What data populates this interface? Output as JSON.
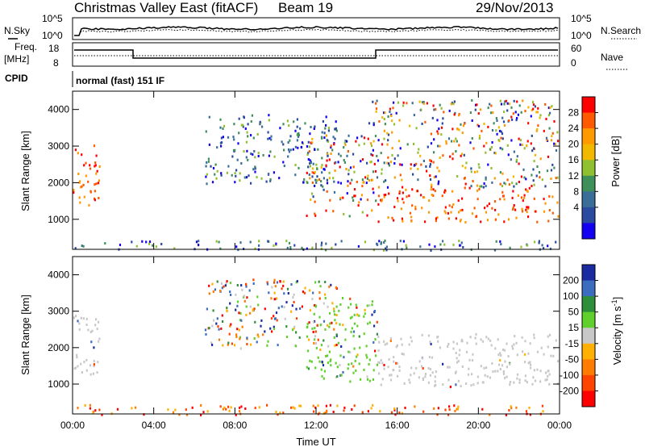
{
  "header": {
    "station": "Christmas Valley East (fitACF)",
    "beam": "Beam 19",
    "date": "29/Nov/2013"
  },
  "top_panels": {
    "noise_left_label": "N.Sky",
    "noise_right_label": "N.Search",
    "noise_left_ticks": [
      "10^5",
      "10^0"
    ],
    "noise_right_ticks": [
      "10^5",
      "10^0"
    ],
    "freq_left_label_1": "Freq.",
    "freq_left_label_2": "[MHz]",
    "freq_left_ticks": [
      "18",
      "8"
    ],
    "nave_label": "Nave",
    "nave_ticks": [
      "60",
      "0"
    ],
    "cpid_label": "CPID",
    "cpid_value": "normal (fast) 151 IF"
  },
  "chart_data": [
    {
      "type": "heatmap",
      "name": "power",
      "ylabel": "Slant Range [km]",
      "ylim": [
        180,
        4500
      ],
      "yticks": [
        "4000",
        "3000",
        "2000",
        "1000"
      ],
      "xticks": [
        "00:00",
        "04:00",
        "08:00",
        "12:00",
        "16:00",
        "20:00",
        "00:00"
      ],
      "colorbar": {
        "label": "Power [dB]",
        "ticks": [
          "28",
          "24",
          "20",
          "16",
          "12",
          "8",
          "4"
        ],
        "colors": [
          "#ff0000",
          "#ff5a00",
          "#ff9900",
          "#f2b800",
          "#90c030",
          "#3f8f5a",
          "#3a6e98",
          "#2a4aa0",
          "#1400f0"
        ]
      },
      "features": [
        {
          "desc": "backscatter patch",
          "t": [
            0.0,
            1.3
          ],
          "range": [
            1250,
            3050
          ],
          "level": "high"
        },
        {
          "desc": "scatter band",
          "t": [
            6.5,
            13.0
          ],
          "range": [
            2000,
            3900
          ],
          "level": "low"
        },
        {
          "desc": "descending echo",
          "t": [
            11.5,
            15.0
          ],
          "range": [
            1100,
            3400
          ],
          "level": "mixed"
        },
        {
          "desc": "strong echo band",
          "t": [
            15.0,
            23.9
          ],
          "range": [
            950,
            1900
          ],
          "level": "high"
        },
        {
          "desc": "upper scatter",
          "t": [
            14.5,
            23.9
          ],
          "range": [
            1900,
            4300
          ],
          "level": "mixed"
        },
        {
          "desc": "near-range clutter",
          "t": [
            0.0,
            24.0
          ],
          "range": [
            180,
            450
          ],
          "level": "low"
        }
      ]
    },
    {
      "type": "heatmap",
      "name": "velocity",
      "ylabel": "Slant Range [km]",
      "ylim": [
        180,
        4500
      ],
      "yticks": [
        "4000",
        "3000",
        "2000",
        "1000"
      ],
      "xticks": [
        "00:00",
        "04:00",
        "08:00",
        "12:00",
        "16:00",
        "20:00",
        "00:00"
      ],
      "xlabel": "Time UT",
      "colorbar": {
        "label": "Velocity [m s^-1]",
        "ticks": [
          "200",
          "100",
          "50",
          "15",
          "-15",
          "-50",
          "-100",
          "-200"
        ],
        "colors": [
          "#1a2aa0",
          "#3c6cc0",
          "#2e8f3a",
          "#5fd02c",
          "#c8c8c8",
          "#ffb000",
          "#ff7c00",
          "#ff4400",
          "#ff0000"
        ]
      },
      "features": [
        {
          "desc": "low velocity patch",
          "t": [
            0.0,
            1.3
          ],
          "range": [
            1250,
            3000
          ],
          "level": "ground"
        },
        {
          "desc": "scatter band",
          "t": [
            6.5,
            13.0
          ],
          "range": [
            2000,
            3900
          ],
          "level": "mixed"
        },
        {
          "desc": "descending echo",
          "t": [
            11.5,
            15.0
          ],
          "range": [
            1100,
            3400
          ],
          "level": "positive"
        },
        {
          "desc": "wide echo band",
          "t": [
            15.0,
            23.9
          ],
          "range": [
            950,
            2400
          ],
          "level": "ground"
        },
        {
          "desc": "near-range clutter",
          "t": [
            0.0,
            24.0
          ],
          "range": [
            180,
            450
          ],
          "level": "negative"
        }
      ]
    }
  ]
}
